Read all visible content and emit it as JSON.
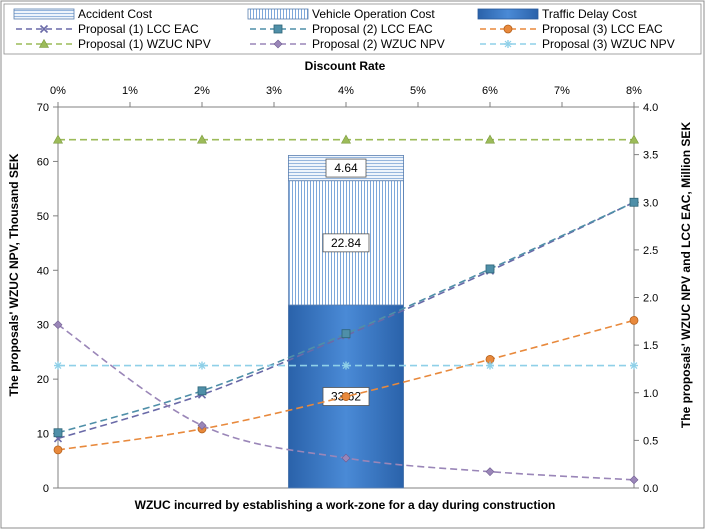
{
  "chart_data": {
    "type": "combo",
    "x_axis_top": {
      "label": "Discount Rate",
      "ticks": [
        "0%",
        "1%",
        "2%",
        "3%",
        "4%",
        "5%",
        "6%",
        "7%",
        "8%"
      ]
    },
    "x_axis_bottom_label": "WZUC incurred by establishing a work-zone for a day during construction",
    "y_left": {
      "label": "The proposals' WZUC NPV, Thousand SEK",
      "range": [
        0,
        70
      ],
      "ticks": [
        "0",
        "10",
        "20",
        "30",
        "40",
        "50",
        "60",
        "70"
      ]
    },
    "y_right": {
      "label": "The proposals' WZUC NPV and LCC EAC, Million SEK",
      "range": [
        0,
        4
      ],
      "ticks": [
        "0.0",
        "0.5",
        "1.0",
        "1.5",
        "2.0",
        "2.5",
        "3.0",
        "3.5",
        "4.0"
      ]
    },
    "stacked_bar": {
      "position": "4%",
      "segments": [
        {
          "name": "Traffic Delay Cost",
          "value": 33.62,
          "label": "33.62",
          "color": "#3d7dc9"
        },
        {
          "name": "Vehicle Operation Cost",
          "value": 22.84,
          "label": "22.84",
          "color": "#bcd3ee"
        },
        {
          "name": "Accident Cost",
          "value": 4.64,
          "label": "4.64",
          "color": "#e3edf8"
        }
      ]
    },
    "series": [
      {
        "name": "Proposal (1) LCC EAC",
        "axis": "right",
        "color": "#6a6aa8",
        "marker": "x",
        "x": [
          0,
          2,
          4,
          6,
          8
        ],
        "y": [
          0.52,
          0.98,
          1.6,
          2.28,
          3.0
        ]
      },
      {
        "name": "Proposal (2) LCC EAC",
        "axis": "right",
        "color": "#4f8fa8",
        "marker": "square",
        "x": [
          0,
          2,
          4,
          6,
          8
        ],
        "y": [
          0.58,
          1.02,
          1.62,
          2.3,
          3.0
        ]
      },
      {
        "name": "Proposal (3) LCC EAC",
        "axis": "right",
        "color": "#e8893c",
        "marker": "circle",
        "x": [
          0,
          2,
          4,
          6,
          8
        ],
        "y": [
          0.4,
          0.62,
          0.96,
          1.35,
          1.76
        ]
      },
      {
        "name": "Proposal (1) WZUC NPV",
        "axis": "left",
        "color": "#9cbb59",
        "marker": "triangle",
        "x": [
          0,
          2,
          4,
          6,
          8
        ],
        "y": [
          64,
          64,
          64,
          64,
          64
        ]
      },
      {
        "name": "Proposal (2) WZUC NPV",
        "axis": "left",
        "color": "#9a86b8",
        "marker": "diamond",
        "x": [
          0,
          2,
          4,
          6,
          8
        ],
        "y": [
          30,
          11.5,
          5.5,
          3,
          1.5
        ]
      },
      {
        "name": "Proposal (3) WZUC NPV",
        "axis": "left",
        "color": "#8fd0e8",
        "marker": "star",
        "x": [
          0,
          2,
          4,
          6,
          8
        ],
        "y": [
          22.5,
          22.5,
          22.5,
          22.5,
          22.5
        ]
      }
    ],
    "legend": [
      {
        "name": "Accident Cost",
        "kind": "bar-hatch-h"
      },
      {
        "name": "Vehicle Operation Cost",
        "kind": "bar-hatch-v"
      },
      {
        "name": "Traffic Delay Cost",
        "kind": "bar-solid"
      },
      {
        "name": "Proposal (1) LCC EAC",
        "kind": "line"
      },
      {
        "name": "Proposal (2) LCC EAC",
        "kind": "line"
      },
      {
        "name": "Proposal (3) LCC EAC",
        "kind": "line"
      },
      {
        "name": "Proposal (1) WZUC NPV",
        "kind": "line"
      },
      {
        "name": "Proposal (2) WZUC NPV",
        "kind": "line"
      },
      {
        "name": "Proposal (3) WZUC NPV",
        "kind": "line"
      }
    ],
    "legend_placement": "top",
    "grid": false
  }
}
